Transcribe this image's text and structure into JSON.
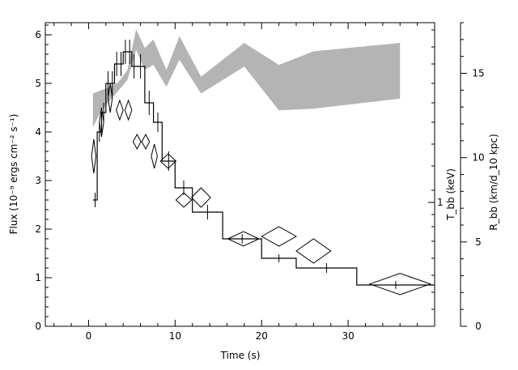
{
  "chart_data": {
    "type": "scatter",
    "xlabel": "Time (s)",
    "ylabel_left": "Flux (10⁻⁹ ergs cm⁻² s⁻¹)",
    "ylabel_right_inner": "T_bb (keV)",
    "ylabel_right_outer": "R_bb (km/d_10 kpc)",
    "xlim": [
      -5,
      40
    ],
    "ylim_left": [
      0,
      6.25
    ],
    "ylim_right_outer": [
      0,
      18
    ],
    "x_ticks": [
      0,
      10,
      20,
      30
    ],
    "x_tick_labels": [
      "0",
      "10",
      "20",
      "30"
    ],
    "y_left_ticks": [
      0,
      1,
      2,
      3,
      4,
      5,
      6
    ],
    "y_left_tick_labels": [
      "0",
      "1",
      "2",
      "3",
      "4",
      "5",
      "6"
    ],
    "y_right_inner_ticks": [
      1
    ],
    "y_right_inner_tick_labels": [
      "1"
    ],
    "y_right_outer_ticks": [
      0,
      5,
      10,
      15
    ],
    "y_right_outer_tick_labels": [
      "0",
      "5",
      "10",
      "15"
    ],
    "flux_step": {
      "bins": [
        [
          0.5,
          1.0,
          2.6,
          0.15
        ],
        [
          1.0,
          1.5,
          4.0,
          0.2
        ],
        [
          1.5,
          2.0,
          4.4,
          0.2
        ],
        [
          2.0,
          2.5,
          5.0,
          0.25
        ],
        [
          2.5,
          3.0,
          5.0,
          0.25
        ],
        [
          3.0,
          3.5,
          5.4,
          0.25
        ],
        [
          3.5,
          4.0,
          5.4,
          0.25
        ],
        [
          4.0,
          4.5,
          5.65,
          0.25
        ],
        [
          4.5,
          5.0,
          5.65,
          0.25
        ],
        [
          5.0,
          5.5,
          5.35,
          0.25
        ],
        [
          5.5,
          6.5,
          5.35,
          0.25
        ],
        [
          6.5,
          7.5,
          4.6,
          0.25
        ],
        [
          7.5,
          8.5,
          4.2,
          0.2
        ],
        [
          8.5,
          10.0,
          3.4,
          0.2
        ],
        [
          10.0,
          12.0,
          2.85,
          0.15
        ],
        [
          12.0,
          15.5,
          2.35,
          0.15
        ],
        [
          15.5,
          20.0,
          1.8,
          0.1
        ],
        [
          20.0,
          24.0,
          1.4,
          0.08
        ],
        [
          24.0,
          31.0,
          1.2,
          0.1
        ],
        [
          31.0,
          40.0,
          0.85,
          0.08
        ]
      ]
    },
    "temperature_kT": [
      [
        0.6,
        0.25,
        3.5,
        0.35
      ],
      [
        1.5,
        0.25,
        4.2,
        0.3
      ],
      [
        2.5,
        0.25,
        4.7,
        0.3
      ],
      [
        3.6,
        0.4,
        4.45,
        0.2
      ],
      [
        4.6,
        0.4,
        4.45,
        0.2
      ],
      [
        5.6,
        0.45,
        3.8,
        0.15
      ],
      [
        6.6,
        0.45,
        3.8,
        0.15
      ],
      [
        7.6,
        0.35,
        3.5,
        0.25
      ],
      [
        9.2,
        0.9,
        3.4,
        0.15
      ],
      [
        11.0,
        0.9,
        2.6,
        0.15
      ],
      [
        13.0,
        1.1,
        2.65,
        0.2
      ],
      [
        17.9,
        1.8,
        1.8,
        0.15
      ],
      [
        22.0,
        2.0,
        1.85,
        0.2
      ],
      [
        26.0,
        2.0,
        1.55,
        0.25
      ],
      [
        36.0,
        3.5,
        0.87,
        0.22
      ]
    ],
    "radius_band": {
      "x": [
        0.5,
        1.5,
        2.5,
        3.5,
        4.5,
        5.5,
        6.5,
        7.5,
        9.0,
        10.5,
        13.0,
        18.0,
        22.0,
        26.0,
        36.0
      ],
      "upper": [
        13.8,
        14.0,
        14.2,
        14.5,
        15.2,
        17.6,
        16.5,
        17.0,
        15.2,
        17.2,
        14.8,
        16.8,
        15.5,
        16.3,
        16.8
      ],
      "lower": [
        11.8,
        12.8,
        13.4,
        14.0,
        14.6,
        16.4,
        15.2,
        15.5,
        14.2,
        15.8,
        13.8,
        15.4,
        12.8,
        12.9,
        13.5
      ]
    }
  }
}
